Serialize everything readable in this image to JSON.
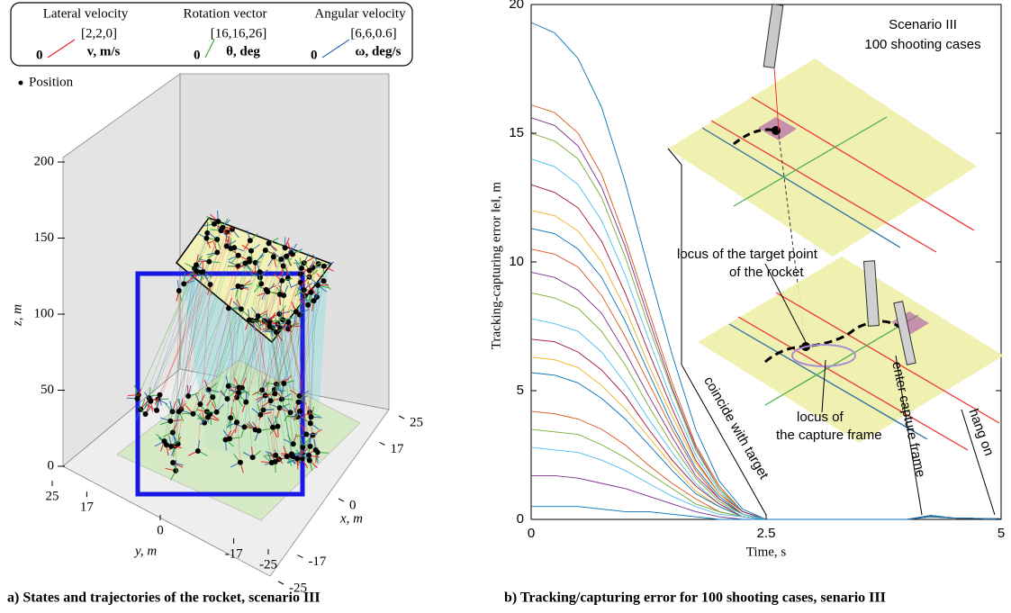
{
  "chart_data": [
    {
      "type": "scatter3d",
      "legend": {
        "titles": [
          "Lateral velocity",
          "Rotation vector",
          "Angular velocity"
        ],
        "vectors": [
          "[2,2,0]",
          "[16,16,26]",
          "[6,6,0.6]"
        ],
        "units": [
          "v, m/s",
          "θ, deg",
          "ω, deg/s"
        ],
        "colors": [
          "#e8262b",
          "#3aa53a",
          "#2f6fb8"
        ],
        "origin_label": "0",
        "position_label": "Position"
      },
      "xlabel": "x, m",
      "ylabel": "y, m",
      "zlabel": "z, m",
      "xlim": [
        -25,
        25
      ],
      "xticks": [
        -25,
        -17,
        0,
        17,
        25
      ],
      "ylim": [
        -25,
        25
      ],
      "yticks": [
        -25,
        -17,
        0,
        17,
        25
      ],
      "zlim": [
        0,
        200
      ],
      "zticks": [
        0,
        50,
        100,
        150,
        200
      ],
      "caption": "a)  States and trajectories of the rocket, scenario III"
    },
    {
      "type": "line",
      "xlabel": "Time, s",
      "ylabel": "Tracking-capturing error ‖e‖, m",
      "xlim": [
        0,
        5
      ],
      "xticks": [
        0,
        2.5,
        5
      ],
      "ylim": [
        0,
        20
      ],
      "yticks": [
        0,
        5,
        10,
        15,
        20
      ],
      "annotations": [
        "Scenario III",
        "100 shooting cases",
        "locus of  the  target point",
        "of the rocket",
        "coincide with target",
        "enter capture frame",
        "hang on",
        "locus of",
        "the capture frame"
      ],
      "x": [
        0,
        0.25,
        0.5,
        0.75,
        1,
        1.25,
        1.5,
        1.75,
        2,
        2.25,
        2.5,
        4,
        4.25,
        4.5,
        5
      ],
      "series": [
        {
          "color": "#0072bd",
          "values": [
            19.3,
            18.9,
            17.9,
            16.0,
            13.1,
            9.7,
            6.4,
            3.5,
            1.5,
            0.4,
            0,
            0,
            0.15,
            0.05,
            0.02
          ]
        },
        {
          "color": "#d95319",
          "values": [
            16.1,
            15.8,
            15.0,
            13.4,
            10.9,
            8.1,
            5.3,
            2.9,
            1.3,
            0.3,
            0,
            0,
            0.15,
            0.05,
            0.02
          ]
        },
        {
          "color": "#7e2f8e",
          "values": [
            15.6,
            15.3,
            14.5,
            12.9,
            10.6,
            7.8,
            5.1,
            2.8,
            1.2,
            0.3,
            0,
            0,
            0.15,
            0.05,
            0.02
          ]
        },
        {
          "color": "#77ac30",
          "values": [
            15,
            14.7,
            14.0,
            12.5,
            10.2,
            7.5,
            5.0,
            2.7,
            1.2,
            0.3,
            0,
            0,
            0.15,
            0.05,
            0.02
          ]
        },
        {
          "color": "#4dbeee",
          "values": [
            14,
            13.7,
            13.0,
            11.6,
            9.5,
            7.0,
            4.6,
            2.5,
            1.1,
            0.3,
            0,
            0,
            0.15,
            0.05,
            0.02
          ]
        },
        {
          "color": "#a2142f",
          "values": [
            13,
            12.7,
            12.1,
            10.8,
            8.8,
            6.5,
            4.3,
            2.3,
            1.0,
            0.3,
            0,
            0,
            0.15,
            0.05,
            0.02
          ]
        },
        {
          "color": "#edb120",
          "values": [
            12,
            11.8,
            11.2,
            10.0,
            8.2,
            6.0,
            4.0,
            2.2,
            1.0,
            0.2,
            0,
            0,
            0.15,
            0.05,
            0.02
          ]
        },
        {
          "color": "#0072bd",
          "values": [
            11.3,
            11.1,
            10.5,
            9.4,
            7.7,
            5.7,
            3.7,
            2.0,
            0.9,
            0.2,
            0,
            0,
            0.15,
            0.05,
            0.02
          ]
        },
        {
          "color": "#d95319",
          "values": [
            10.5,
            10.3,
            9.8,
            8.7,
            7.1,
            5.3,
            3.5,
            1.9,
            0.8,
            0.2,
            0,
            0,
            0.15,
            0.05,
            0.02
          ]
        },
        {
          "color": "#7e2f8e",
          "values": [
            9.6,
            9.4,
            8.9,
            8.0,
            6.5,
            4.8,
            3.2,
            1.7,
            0.8,
            0.2,
            0,
            0,
            0.15,
            0.05,
            0.02
          ]
        },
        {
          "color": "#77ac30",
          "values": [
            8.8,
            8.6,
            8.2,
            7.3,
            6.0,
            4.4,
            2.9,
            1.6,
            0.7,
            0.2,
            0,
            0,
            0.15,
            0.05,
            0.02
          ]
        },
        {
          "color": "#4dbeee",
          "values": [
            7.8,
            7.6,
            7.3,
            6.5,
            5.3,
            3.9,
            2.6,
            1.4,
            0.6,
            0.2,
            0,
            0,
            0.15,
            0.05,
            0.02
          ]
        },
        {
          "color": "#a2142f",
          "values": [
            7,
            6.9,
            6.5,
            5.8,
            4.8,
            3.5,
            2.3,
            1.3,
            0.6,
            0.1,
            0,
            0,
            0.15,
            0.05,
            0.02
          ]
        },
        {
          "color": "#edb120",
          "values": [
            6.3,
            6.2,
            5.9,
            5.2,
            4.3,
            3.2,
            2.1,
            1.1,
            0.5,
            0.1,
            0,
            0,
            0.15,
            0.05,
            0.02
          ]
        },
        {
          "color": "#0072bd",
          "values": [
            5.7,
            5.6,
            5.3,
            4.7,
            3.9,
            2.9,
            1.9,
            1.0,
            0.5,
            0.1,
            0,
            0,
            0.15,
            0.05,
            0.02
          ]
        },
        {
          "color": "#d95319",
          "values": [
            4.2,
            4.1,
            3.9,
            3.5,
            2.9,
            2.1,
            1.4,
            0.8,
            0.3,
            0.1,
            0,
            0,
            0.1,
            0.05,
            0.02
          ]
        },
        {
          "color": "#77ac30",
          "values": [
            3.5,
            3.4,
            3.3,
            2.9,
            2.4,
            1.8,
            1.2,
            0.6,
            0.3,
            0.1,
            0,
            0,
            0.1,
            0.05,
            0.02
          ]
        },
        {
          "color": "#4dbeee",
          "values": [
            2.8,
            2.7,
            2.6,
            2.3,
            1.9,
            1.4,
            0.9,
            0.5,
            0.2,
            0.1,
            0,
            0,
            0.1,
            0.05,
            0.02
          ]
        },
        {
          "color": "#7e2f8e",
          "values": [
            1.7,
            1.7,
            1.6,
            1.4,
            1.2,
            0.9,
            0.6,
            0.3,
            0.1,
            0,
            0,
            0,
            0.1,
            0.05,
            0.02
          ]
        },
        {
          "color": "#0072bd",
          "values": [
            0.5,
            0.5,
            0.5,
            0.4,
            0.3,
            0.3,
            0.2,
            0.1,
            0,
            0,
            0,
            0,
            0.1,
            0.05,
            0.02
          ]
        }
      ],
      "caption": "b) Tracking/capturing error for 100 shooting cases, senario III"
    }
  ]
}
